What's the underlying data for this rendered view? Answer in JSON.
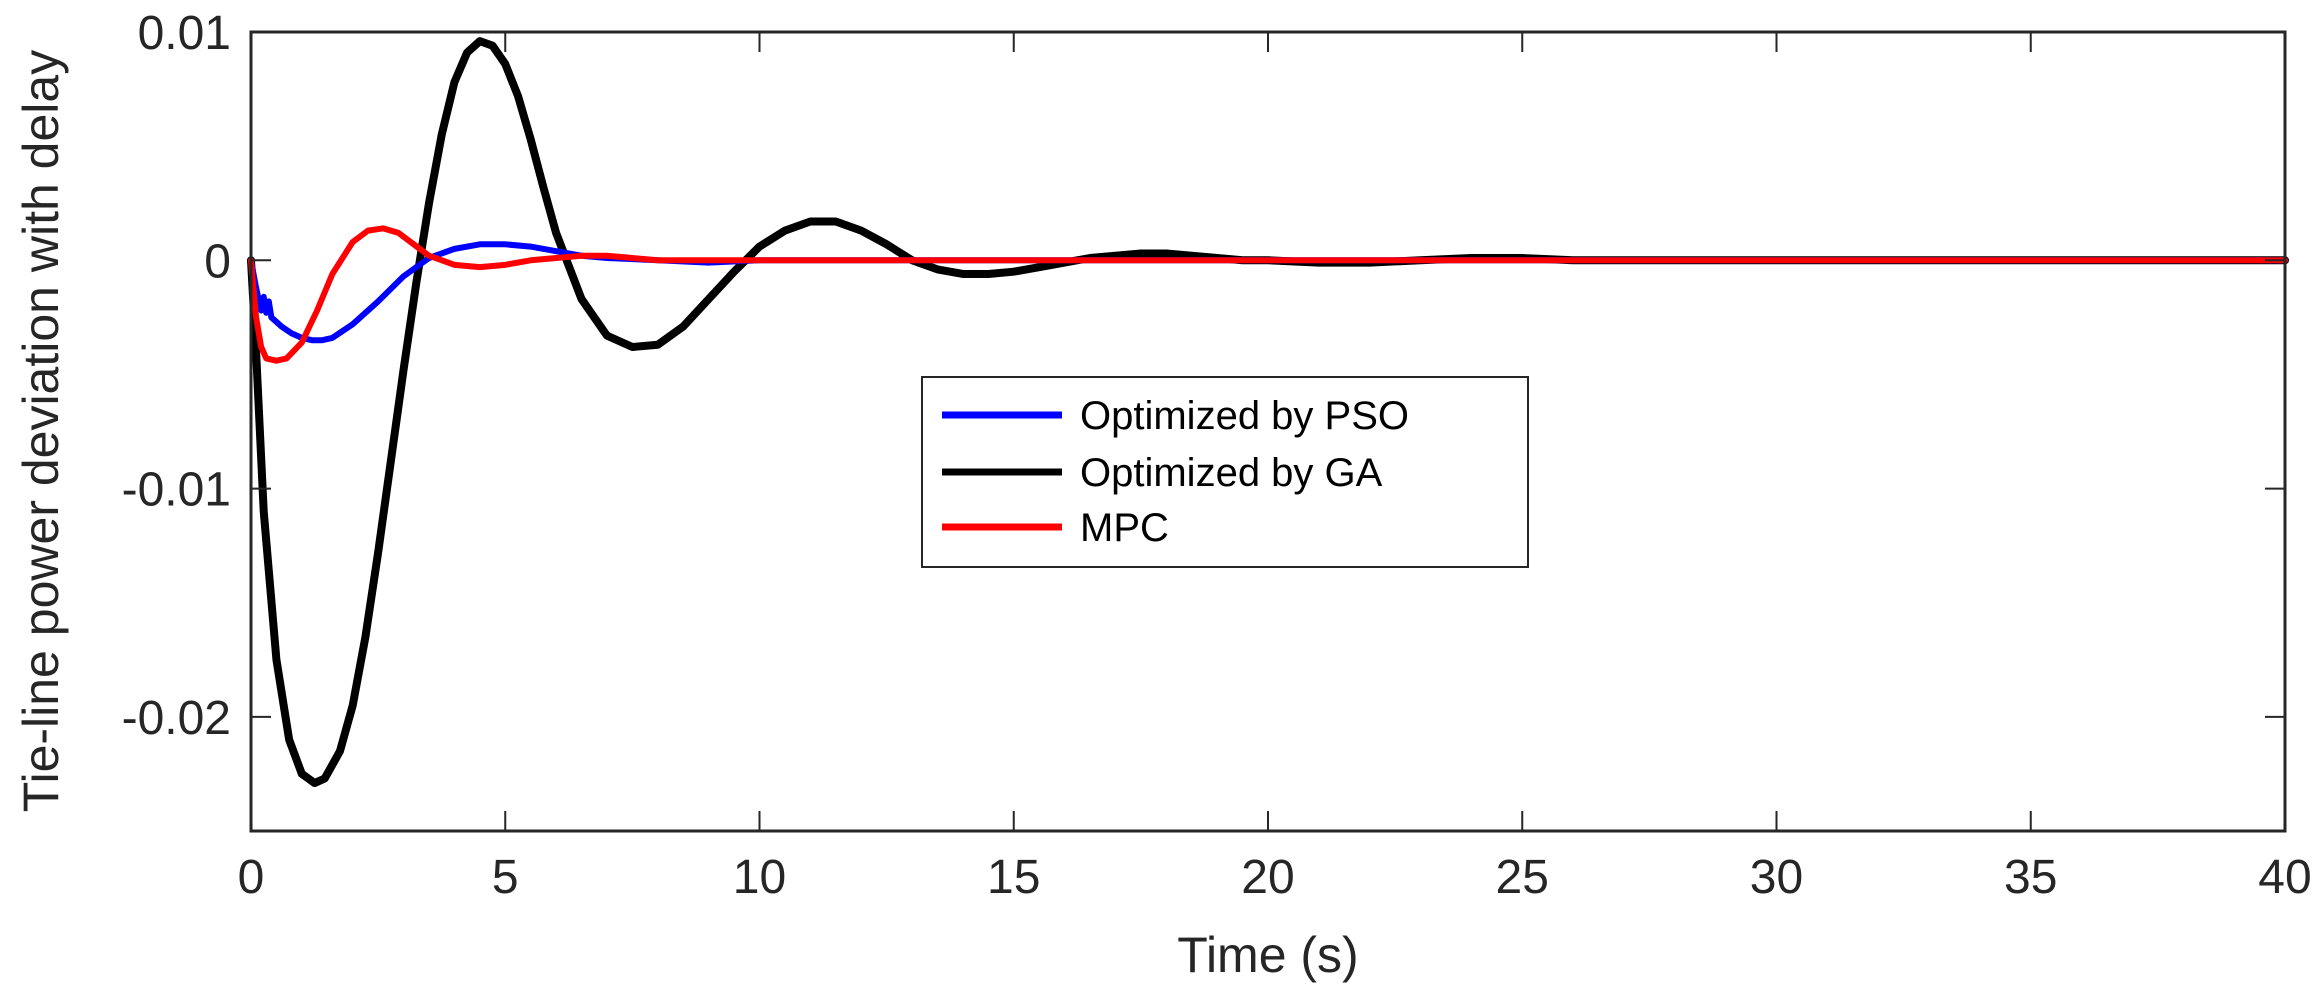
{
  "chart_data": {
    "type": "line",
    "title": "",
    "xlabel": "Time (s)",
    "ylabel": "Tie-line power deviation with delay",
    "xlim": [
      0,
      40
    ],
    "ylim": [
      -0.025,
      0.01
    ],
    "xticks": [
      0,
      5,
      10,
      15,
      20,
      25,
      30,
      35,
      40
    ],
    "xtick_labels": [
      "0",
      "5",
      "10",
      "15",
      "20",
      "25",
      "30",
      "35",
      "40"
    ],
    "yticks": [
      0.01,
      0,
      -0.01,
      -0.02
    ],
    "ytick_labels": [
      "0.01",
      "0",
      "-0.01",
      "-0.02"
    ],
    "grid": false,
    "legend_position": "center",
    "series": [
      {
        "name": "Optimized by PSO",
        "color": "#0000ff",
        "x": [
          0,
          0.1,
          0.2,
          0.25,
          0.3,
          0.35,
          0.4,
          0.5,
          0.6,
          0.8,
          1.0,
          1.2,
          1.4,
          1.6,
          2.0,
          2.5,
          3.0,
          3.5,
          4.0,
          4.5,
          5.0,
          5.5,
          6.0,
          6.5,
          7.0,
          8.0,
          9.0,
          10.0,
          12.0,
          40.0
        ],
        "y": [
          0,
          -0.0012,
          -0.0022,
          -0.0016,
          -0.0023,
          -0.0018,
          -0.0025,
          -0.0027,
          -0.0029,
          -0.0032,
          -0.0034,
          -0.0035,
          -0.0035,
          -0.0034,
          -0.0028,
          -0.0018,
          -0.0007,
          0.0001,
          0.0005,
          0.0007,
          0.0007,
          0.0006,
          0.0004,
          0.0002,
          0.0001,
          0.0,
          -0.0001,
          0.0,
          0.0,
          0.0
        ]
      },
      {
        "name": "Optimized by GA",
        "color": "#000000",
        "x": [
          0,
          0.1,
          0.25,
          0.5,
          0.75,
          1.0,
          1.25,
          1.45,
          1.75,
          2.0,
          2.25,
          2.5,
          2.75,
          3.0,
          3.25,
          3.5,
          3.75,
          4.0,
          4.25,
          4.5,
          4.75,
          5.0,
          5.25,
          5.5,
          5.75,
          6.0,
          6.5,
          7.0,
          7.5,
          8.0,
          8.5,
          9.0,
          9.5,
          10.0,
          10.5,
          11.0,
          11.5,
          12.0,
          12.5,
          13.0,
          13.5,
          14.0,
          14.5,
          15.0,
          15.5,
          16.0,
          16.5,
          17.0,
          17.5,
          18.0,
          18.5,
          19.0,
          19.5,
          20.0,
          21.0,
          22.0,
          23.0,
          24.0,
          25.0,
          26.0,
          27.0,
          40.0
        ],
        "y": [
          0,
          -0.004,
          -0.011,
          -0.0175,
          -0.021,
          -0.0225,
          -0.0229,
          -0.0227,
          -0.0215,
          -0.0195,
          -0.0165,
          -0.0128,
          -0.0088,
          -0.0048,
          -0.001,
          0.0025,
          0.0055,
          0.0078,
          0.0091,
          0.0096,
          0.0094,
          0.0086,
          0.0072,
          0.0053,
          0.0032,
          0.0012,
          -0.0017,
          -0.0033,
          -0.0038,
          -0.0037,
          -0.0029,
          -0.0017,
          -0.0005,
          0.0006,
          0.0013,
          0.0017,
          0.0017,
          0.0013,
          0.0007,
          0.0,
          -0.0004,
          -0.0006,
          -0.0006,
          -0.0005,
          -0.0003,
          -0.0001,
          0.0001,
          0.0002,
          0.0003,
          0.0003,
          0.0002,
          0.0001,
          0.0,
          0.0,
          -0.0001,
          -0.0001,
          0.0,
          0.0001,
          0.0001,
          0.0,
          0.0,
          0.0
        ]
      },
      {
        "name": "MPC",
        "color": "#ff0000",
        "x": [
          0,
          0.1,
          0.2,
          0.3,
          0.5,
          0.7,
          1.0,
          1.3,
          1.6,
          2.0,
          2.3,
          2.6,
          2.9,
          3.2,
          3.5,
          4.0,
          4.5,
          5.0,
          5.5,
          6.0,
          6.5,
          7.0,
          7.5,
          8.0,
          9.0,
          10.0,
          40.0
        ],
        "y": [
          0,
          -0.0025,
          -0.0038,
          -0.0043,
          -0.0044,
          -0.0043,
          -0.0036,
          -0.0022,
          -0.0006,
          0.0008,
          0.0013,
          0.0014,
          0.0012,
          0.0007,
          0.0002,
          -0.0002,
          -0.0003,
          -0.0002,
          0.0,
          0.0001,
          0.0002,
          0.0002,
          0.0001,
          0.0,
          0.0,
          0.0,
          0.0
        ]
      }
    ]
  }
}
